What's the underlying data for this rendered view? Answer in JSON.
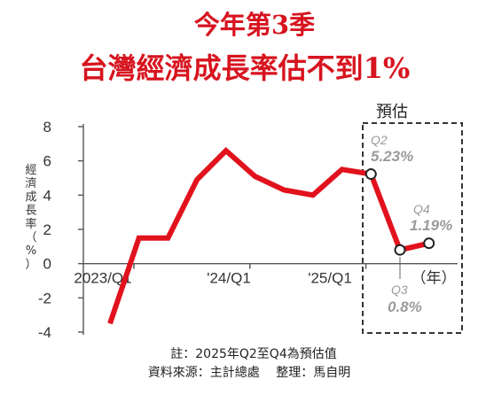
{
  "title_line1": "今年第3季",
  "title_line2": "台灣經濟成長率估不到1%",
  "colors": {
    "title": "#d7141f",
    "line": "#e1121d",
    "forecast_label": "#9a9a9a"
  },
  "forecast_label": "預估",
  "year_unit": "（年）",
  "notes": {
    "line1": "註：2025年Q2至Q4為預估值",
    "line2": "資料來源：主計總處　 整理：馬自明"
  },
  "forecast_points": [
    {
      "quarter": "Q2",
      "value_label": "5.23%"
    },
    {
      "quarter": "Q3",
      "value_label": "0.8%"
    },
    {
      "quarter": "Q4",
      "value_label": "1.19%"
    }
  ],
  "chart_data": {
    "type": "line",
    "title": "今年第3季 台灣經濟成長率估不到1%",
    "ylabel": [
      "經",
      "濟",
      "成",
      "長",
      "率",
      "（",
      "%",
      "）"
    ],
    "xlabel": "（年）",
    "ylim": [
      -4,
      8
    ],
    "yticks": [
      "8",
      "6",
      "4",
      "2",
      "0",
      "-2",
      "-4"
    ],
    "xticks": [
      "2023/Q1",
      "'24/Q1",
      "'25/Q1"
    ],
    "x": [
      "2023/Q1",
      "2023/Q2",
      "2023/Q3",
      "2023/Q4",
      "2024/Q1",
      "2024/Q2",
      "2024/Q3",
      "2024/Q4",
      "2025/Q1",
      "2025/Q2",
      "2025/Q3",
      "2025/Q4"
    ],
    "series": [
      {
        "values": [
          -3.5,
          1.5,
          1.5,
          4.9,
          6.6,
          5.1,
          4.3,
          4.0,
          5.5,
          5.23,
          0.8,
          1.19
        ]
      }
    ],
    "forecast_range": [
      "2025/Q2",
      "2025/Q4"
    ],
    "grid": false
  }
}
